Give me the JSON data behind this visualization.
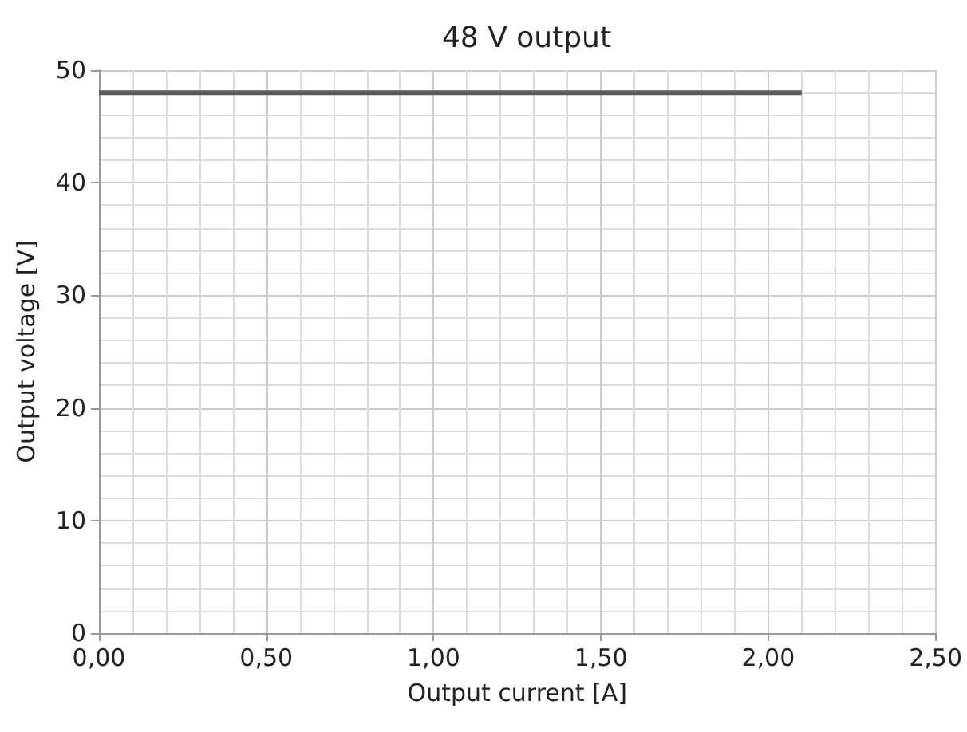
{
  "chart_data": {
    "type": "line",
    "title": "48 V output",
    "xlabel": "Output current [A]",
    "ylabel": "Output voltage [V]",
    "x": [
      0,
      2.1
    ],
    "series": [
      {
        "color": "#5a5a5a",
        "values": [
          48,
          48
        ]
      }
    ],
    "xlim": [
      0,
      2.5
    ],
    "xticks": [
      {
        "value": 0,
        "label": "0,00"
      },
      {
        "value": 0.5,
        "label": "0,50"
      },
      {
        "value": 1,
        "label": "1,00"
      },
      {
        "value": 1.5,
        "label": "1,50"
      },
      {
        "value": 2,
        "label": "2,00"
      },
      {
        "value": 2.5,
        "label": "2,50"
      }
    ],
    "ylim": [
      0,
      50
    ],
    "yticks": [
      0,
      10,
      20,
      30,
      40,
      50
    ],
    "grid": true,
    "marker": "none",
    "line_style": "solid"
  }
}
